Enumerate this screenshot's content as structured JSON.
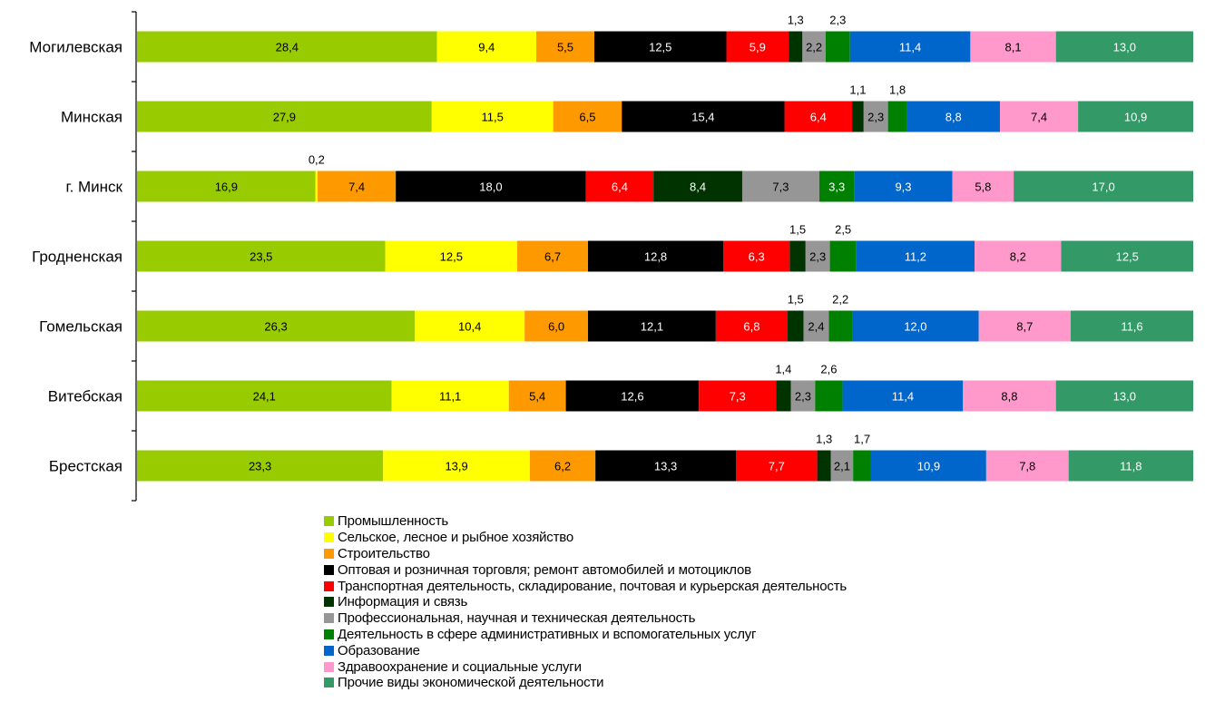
{
  "chart_data": {
    "type": "bar",
    "orientation": "horizontal",
    "stacked": true,
    "percent": true,
    "title": "",
    "xlabel": "",
    "ylabel": "",
    "xlim": [
      0,
      100
    ],
    "grid": false,
    "legend_position": "bottom",
    "categories": [
      "Могилевская",
      "Минская",
      "г. Минск",
      "Гродненская",
      "Гомельская",
      "Витебская",
      "Брестская"
    ],
    "series": [
      {
        "name": "Промышленность",
        "color": "#99CC00",
        "label_color": "#000000",
        "labels": [
          "28,4",
          "27,9",
          "16,9",
          "23,5",
          "26,3",
          "24,1",
          "23,3"
        ],
        "values": [
          28.4,
          27.9,
          16.9,
          23.5,
          26.3,
          24.1,
          23.3
        ]
      },
      {
        "name": "Сельское, лесное и рыбное хозяйство",
        "color": "#FFFF00",
        "label_color": "#000000",
        "labels": [
          "9,4",
          "11,5",
          "0,2",
          "12,5",
          "10,4",
          "11,1",
          "13,9"
        ],
        "values": [
          9.4,
          11.5,
          0.2,
          12.5,
          10.4,
          11.1,
          13.9
        ]
      },
      {
        "name": "Строительство",
        "color": "#FF9900",
        "label_color": "#000000",
        "labels": [
          "5,5",
          "6,5",
          "7,4",
          "6,7",
          "6,0",
          "5,4",
          "6,2"
        ],
        "values": [
          5.5,
          6.5,
          7.4,
          6.7,
          6.0,
          5.4,
          6.2
        ]
      },
      {
        "name": "Оптовая и розничная торговля; ремонт автомобилей и мотоциклов",
        "color": "#000000",
        "label_color": "#FFFFFF",
        "labels": [
          "12,5",
          "15,4",
          "18,0",
          "12,8",
          "12,1",
          "12,6",
          "13,3"
        ],
        "values": [
          12.5,
          15.4,
          18.0,
          12.8,
          12.1,
          12.6,
          13.3
        ]
      },
      {
        "name": "Транспортная деятельность, складирование, почтовая и курьерская деятельность",
        "color": "#FF0000",
        "label_color": "#FFFFFF",
        "labels": [
          "5,9",
          "6,4",
          "6,4",
          "6,3",
          "6,8",
          "7,3",
          "7,7"
        ],
        "values": [
          5.9,
          6.4,
          6.4,
          6.3,
          6.8,
          7.3,
          7.7
        ]
      },
      {
        "name": "Информация и связь",
        "color": "#003300",
        "label_color": "#FFFFFF",
        "labels": [
          "1,3",
          "1,1",
          "8,4",
          "1,5",
          "1,5",
          "1,4",
          "1,3"
        ],
        "values": [
          1.3,
          1.1,
          8.4,
          1.5,
          1.5,
          1.4,
          1.3
        ]
      },
      {
        "name": "Профессиональная, научная и техническая деятельность",
        "color": "#969696",
        "label_color": "#000000",
        "labels": [
          "2,2",
          "2,3",
          "7,3",
          "2,3",
          "2,4",
          "2,3",
          "2,1"
        ],
        "values": [
          2.2,
          2.3,
          7.3,
          2.3,
          2.4,
          2.3,
          2.1
        ]
      },
      {
        "name": "Деятельность в сфере административных и вспомогательных услуг",
        "color": "#008000",
        "label_color": "#FFFFFF",
        "labels": [
          "2,3",
          "1,8",
          "3,3",
          "2,5",
          "2,2",
          "2,6",
          "1,7"
        ],
        "values": [
          2.3,
          1.8,
          3.3,
          2.5,
          2.2,
          2.6,
          1.7
        ]
      },
      {
        "name": "Образование",
        "color": "#0066CC",
        "label_color": "#FFFFFF",
        "labels": [
          "11,4",
          "8,8",
          "9,3",
          "11,2",
          "12,0",
          "11,4",
          "10,9"
        ],
        "values": [
          11.4,
          8.8,
          9.3,
          11.2,
          12.0,
          11.4,
          10.9
        ]
      },
      {
        "name": "Здравоохранение и социальные услуги",
        "color": "#FF99CC",
        "label_color": "#000000",
        "labels": [
          "8,1",
          "7,4",
          "5,8",
          "8,2",
          "8,7",
          "8,8",
          "7,8"
        ],
        "values": [
          8.1,
          7.4,
          5.8,
          8.2,
          8.7,
          8.8,
          7.8
        ]
      },
      {
        "name": "Прочие виды экономической деятельности",
        "color": "#339966",
        "label_color": "#FFFFFF",
        "labels": [
          "13,0",
          "10,9",
          "17,0",
          "12,5",
          "11,6",
          "13,0",
          "11,8"
        ],
        "values": [
          13.0,
          10.9,
          17.0,
          12.5,
          11.6,
          13.0,
          11.8
        ]
      }
    ],
    "labels_above": [
      {
        "category": "Могилевская",
        "series": [
          "Информация и связь",
          "Деятельность в сфере административных и вспомогательных услуг"
        ]
      },
      {
        "category": "Минская",
        "series": [
          "Информация и связь",
          "Деятельность в сфере административных и вспомогательных услуг"
        ]
      },
      {
        "category": "г. Минск",
        "series": [
          "Сельское, лесное и рыбное хозяйство"
        ]
      },
      {
        "category": "Гродненская",
        "series": [
          "Информация и связь",
          "Деятельность в сфере административных и вспомогательных услуг"
        ]
      },
      {
        "category": "Гомельская",
        "series": [
          "Информация и связь",
          "Деятельность в сфере административных и вспомогательных услуг"
        ]
      },
      {
        "category": "Витебская",
        "series": [
          "Информация и связь",
          "Деятельность в сфере административных и вспомогательных услуг"
        ]
      },
      {
        "category": "Брестская",
        "series": [
          "Информация и связь",
          "Деятельность в сфере административных и вспомогательных услуг"
        ]
      }
    ]
  }
}
